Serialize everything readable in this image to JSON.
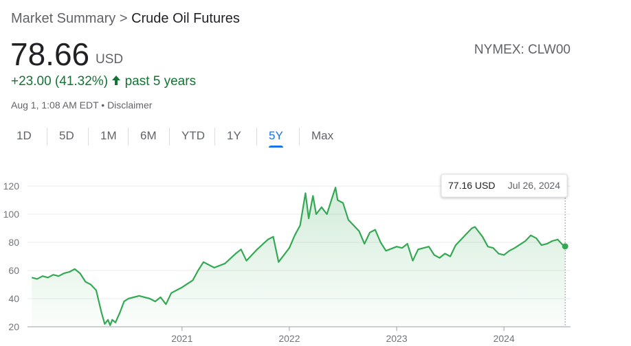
{
  "header": {
    "breadcrumb": "Market Summary",
    "crumb_sep": ">",
    "title": "Crude Oil Futures",
    "price": "78.66",
    "currency": "USD",
    "exchange": "NYMEX: CLW00",
    "change": "+23.00 (41.32%)",
    "period": "past 5 years",
    "timestamp": "Aug 1, 1:08 AM EDT",
    "disclaimer": "Disclaimer"
  },
  "tabs": [
    "1D",
    "5D",
    "1M",
    "6M",
    "YTD",
    "1Y",
    "5Y",
    "Max"
  ],
  "active_tab": 6,
  "tooltip": {
    "price": "77.16 USD",
    "date": "Jul 26, 2024"
  },
  "chart_data": {
    "type": "line",
    "color": "#34a853",
    "grid": true,
    "xlim": [
      2019.56,
      2024.62
    ],
    "xticks": [
      2021,
      2022,
      2023,
      2024
    ],
    "ylim": [
      20,
      120
    ],
    "yticks": [
      20,
      40,
      60,
      80,
      100,
      120
    ],
    "x": [
      2019.6,
      2019.65,
      2019.7,
      2019.75,
      2019.8,
      2019.85,
      2019.9,
      2019.95,
      2020.0,
      2020.05,
      2020.1,
      2020.15,
      2020.2,
      2020.25,
      2020.28,
      2020.31,
      2020.33,
      2020.35,
      2020.38,
      2020.42,
      2020.46,
      2020.5,
      2020.6,
      2020.7,
      2020.75,
      2020.8,
      2020.85,
      2020.9,
      2021.0,
      2021.1,
      2021.15,
      2021.2,
      2021.3,
      2021.4,
      2021.5,
      2021.55,
      2021.6,
      2021.7,
      2021.8,
      2021.85,
      2021.9,
      2022.0,
      2022.05,
      2022.1,
      2022.15,
      2022.18,
      2022.22,
      2022.25,
      2022.3,
      2022.35,
      2022.4,
      2022.43,
      2022.45,
      2022.5,
      2022.55,
      2022.6,
      2022.65,
      2022.7,
      2022.75,
      2022.8,
      2022.85,
      2022.9,
      2023.0,
      2023.05,
      2023.1,
      2023.15,
      2023.2,
      2023.3,
      2023.35,
      2023.4,
      2023.45,
      2023.5,
      2023.55,
      2023.6,
      2023.7,
      2023.73,
      2023.8,
      2023.85,
      2023.9,
      2023.95,
      2024.0,
      2024.05,
      2024.1,
      2024.2,
      2024.25,
      2024.3,
      2024.35,
      2024.4,
      2024.45,
      2024.5,
      2024.55,
      2024.57
    ],
    "values": [
      55,
      54,
      56,
      55,
      57,
      56,
      58,
      59,
      61,
      58,
      52,
      50,
      46,
      30,
      22,
      25,
      21,
      25,
      23,
      30,
      38,
      40,
      42,
      40,
      38,
      41,
      36,
      44,
      48,
      53,
      60,
      66,
      62,
      65,
      72,
      75,
      67,
      75,
      82,
      84,
      66,
      76,
      85,
      92,
      115,
      97,
      113,
      100,
      105,
      100,
      112,
      119,
      110,
      108,
      96,
      92,
      88,
      79,
      87,
      89,
      80,
      74,
      77,
      76,
      79,
      67,
      75,
      77,
      71,
      69,
      72,
      70,
      78,
      82,
      90,
      91,
      84,
      77,
      76,
      72,
      71,
      74,
      76,
      81,
      85,
      83,
      78,
      79,
      81,
      82,
      78,
      77.16
    ]
  }
}
